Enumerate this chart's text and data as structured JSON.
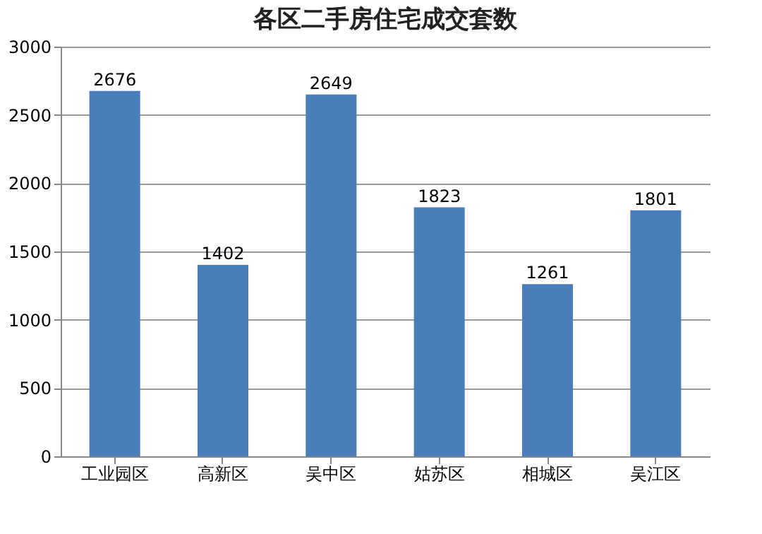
{
  "chart_data": {
    "type": "bar",
    "title": "各区二手房住宅成交套数",
    "categories": [
      "工业园区",
      "高新区",
      "吴中区",
      "姑苏区",
      "相城区",
      "吴江区"
    ],
    "values": [
      2676,
      1402,
      2649,
      1823,
      1261,
      1801
    ],
    "color": "#4a7ebb",
    "ylim": [
      0,
      3000
    ],
    "yticks": [
      0,
      500,
      1000,
      1500,
      2000,
      2500,
      3000
    ],
    "grid": "y",
    "data_labels": true
  }
}
